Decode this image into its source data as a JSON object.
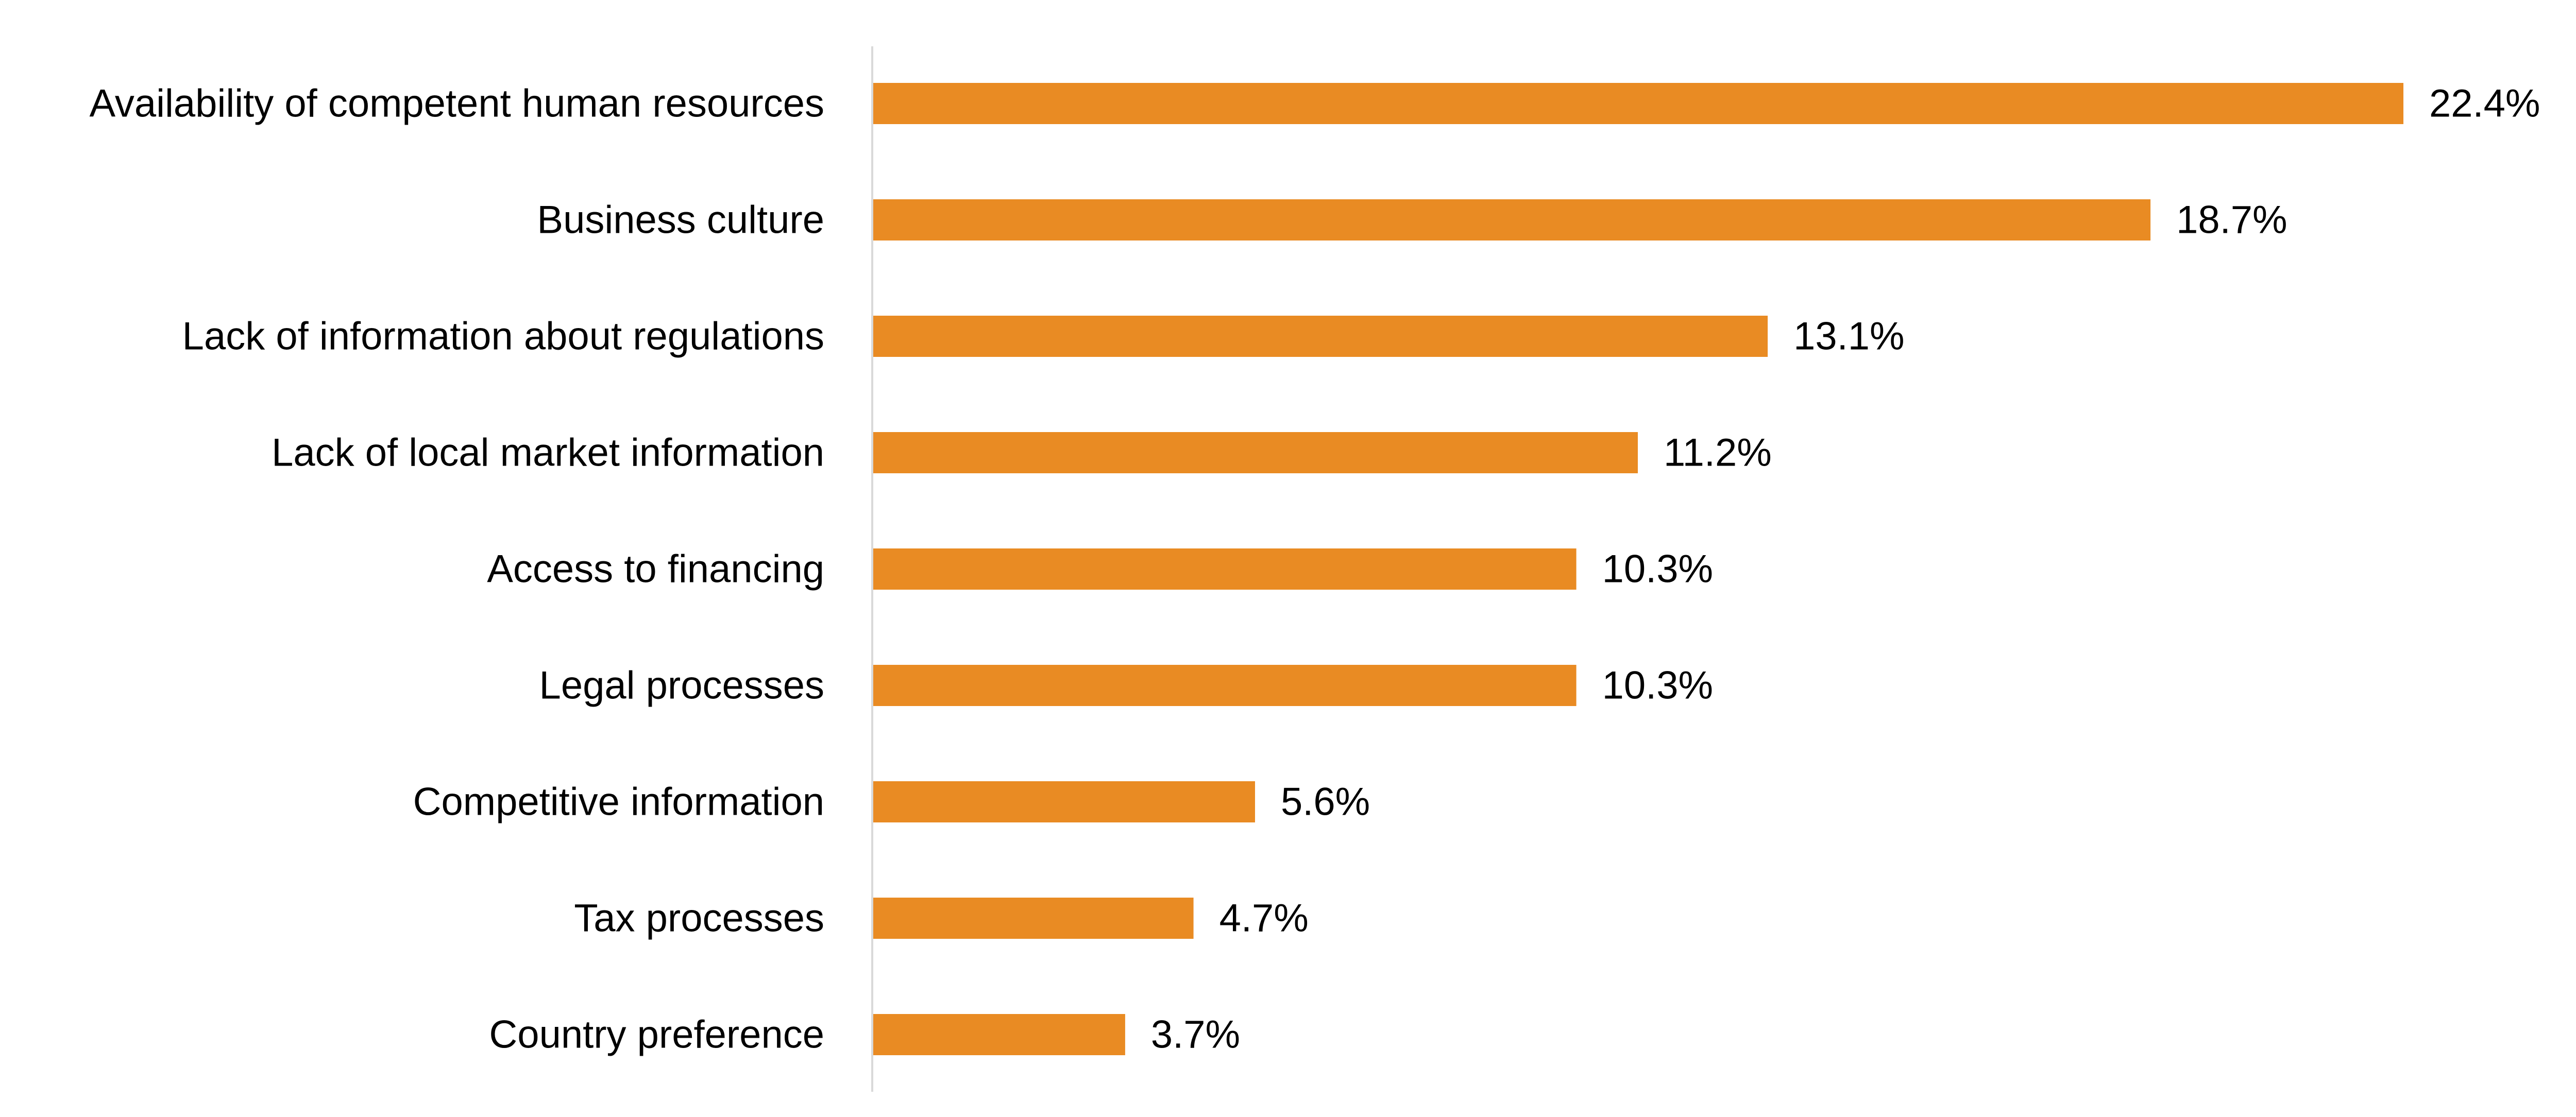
{
  "chart_data": {
    "type": "bar",
    "orientation": "horizontal",
    "categories": [
      "Availability of competent human resources",
      "Business culture",
      "Lack of information about regulations",
      "Lack of local market information",
      "Access to financing",
      "Legal processes",
      "Competitive information",
      "Tax processes",
      "Country preference"
    ],
    "values": [
      22.4,
      18.7,
      13.1,
      11.2,
      10.3,
      10.3,
      5.6,
      4.7,
      3.7
    ],
    "value_labels": [
      "22.4%",
      "18.7%",
      "13.1%",
      "11.2%",
      "10.3%",
      "10.3%",
      "5.6%",
      "4.7%",
      "3.7%"
    ],
    "unit": "%",
    "title": "",
    "xlabel": "",
    "ylabel": "",
    "xlim": [
      0,
      22.4
    ],
    "grid": false,
    "legend": "none",
    "colors": {
      "bar": "#E98B23",
      "axis": "#D9D9D9",
      "text": "#000000"
    }
  }
}
